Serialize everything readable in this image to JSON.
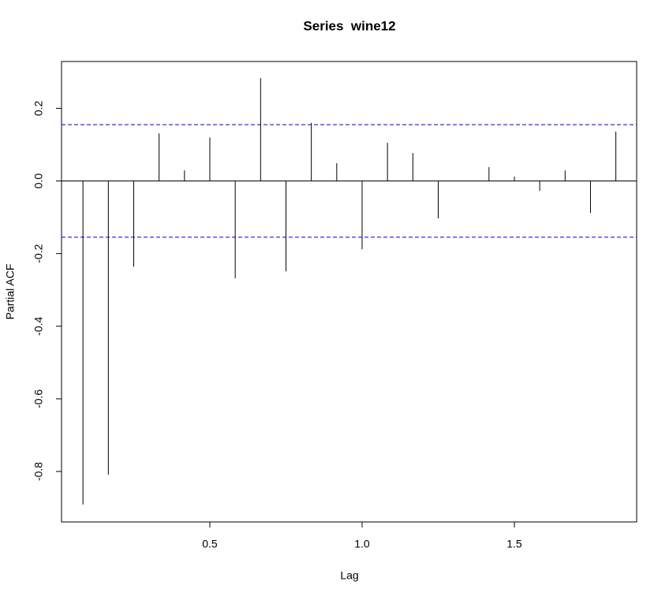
{
  "chart_data": {
    "type": "pacf",
    "title": "Series  wine12",
    "xlabel": "Lag",
    "ylabel": "Partial ACF",
    "x": [
      0.0833,
      0.1667,
      0.25,
      0.3333,
      0.4167,
      0.5,
      0.5833,
      0.6667,
      0.75,
      0.8333,
      0.9167,
      1.0,
      1.0833,
      1.1667,
      1.25,
      1.3333,
      1.4167,
      1.5,
      1.5833,
      1.6667,
      1.75,
      1.8333
    ],
    "values": [
      -0.891,
      -0.809,
      -0.236,
      0.131,
      0.029,
      0.12,
      -0.268,
      0.283,
      -0.249,
      0.16,
      0.049,
      -0.188,
      0.105,
      0.077,
      -0.103,
      0,
      0.038,
      0.012,
      -0.027,
      0.029,
      -0.088,
      0.136
    ],
    "color": "#000000",
    "ci_bands": [
      0.155,
      -0.155
    ],
    "ci_color": "#0000cc",
    "xlim": [
      0.013,
      1.9016
    ],
    "ylim": [
      -0.939,
      0.329
    ],
    "xticks": [
      0.5,
      {
        "value": 1,
        "label": "1.0"
      },
      1.5
    ],
    "yticks": [
      -0.8,
      -0.6,
      -0.4,
      -0.2,
      {
        "value": 0,
        "label": "0.0"
      },
      0.2
    ]
  }
}
